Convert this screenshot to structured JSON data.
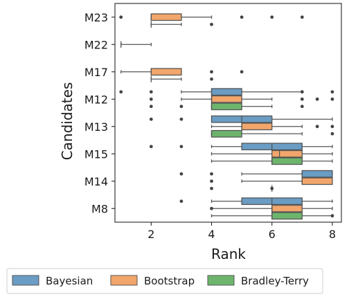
{
  "chart_data": {
    "type": "boxplot",
    "orientation": "horizontal",
    "xlabel": "Rank",
    "ylabel": "Candidates",
    "xlim": [
      0.8,
      8.3
    ],
    "xticks": [
      2,
      4,
      6,
      8
    ],
    "categories": [
      "M23",
      "M22",
      "M17",
      "M12",
      "M13",
      "M15",
      "M14",
      "M8"
    ],
    "legend": {
      "placement": "bottom-outside"
    },
    "series": [
      {
        "name": "Bayesian",
        "color": "#6a9cc4",
        "boxes": {
          "M23": null,
          "M22": null,
          "M17": null,
          "M12": {
            "whislo": 3,
            "q1": 4,
            "med": 4,
            "q3": 5,
            "whishi": 7,
            "fliers": [
              1,
              2,
              7,
              8
            ]
          },
          "M13": {
            "whislo": 4,
            "q1": 4,
            "med": 5,
            "q3": 6,
            "whishi": 8,
            "fliers": [
              2,
              3
            ]
          },
          "M15": {
            "whislo": 4,
            "q1": 5,
            "med": 6,
            "q3": 7,
            "whishi": 8,
            "fliers": [
              2,
              3
            ]
          },
          "M14": {
            "whislo": 5,
            "q1": 7,
            "med": 7,
            "q3": 8,
            "whishi": 8,
            "fliers": [
              3,
              4
            ]
          },
          "M8": {
            "whislo": 4,
            "q1": 5,
            "med": 6,
            "q3": 7,
            "whishi": 8,
            "fliers": [
              3
            ]
          }
        }
      },
      {
        "name": "Bootstrap",
        "color": "#f2a66b",
        "boxes": {
          "M23": {
            "whislo": 2,
            "q1": 2,
            "med": 2,
            "q3": 3,
            "whishi": 4,
            "fliers": [
              1,
              5,
              6,
              7
            ]
          },
          "M22": {
            "whislo": 1,
            "q1": 1,
            "med": 1,
            "q3": 1,
            "whishi": 2,
            "fliers": []
          },
          "M17": {
            "whislo": 1,
            "q1": 2,
            "med": 2,
            "q3": 3,
            "whishi": 3,
            "fliers": [
              4,
              5
            ]
          },
          "M12": {
            "whislo": 3,
            "q1": 4,
            "med": 4,
            "q3": 5,
            "whishi": 6,
            "fliers": [
              2,
              7,
              7.5,
              8
            ]
          },
          "M13": {
            "whislo": 4,
            "q1": 5,
            "med": 5,
            "q3": 6,
            "whishi": 7,
            "fliers": [
              7.5,
              8
            ]
          },
          "M15": {
            "whislo": 4,
            "q1": 6,
            "med": 6.25,
            "q3": 7,
            "whishi": 8,
            "fliers": []
          },
          "M14": {
            "whislo": 5,
            "q1": 7,
            "med": 7,
            "q3": 8,
            "whishi": 8,
            "fliers": [
              4
            ]
          },
          "M8": {
            "whislo": 4,
            "q1": 6,
            "med": 6,
            "q3": 7,
            "whishi": 8,
            "fliers": [
              4
            ]
          }
        }
      },
      {
        "name": "Bradley-Terry",
        "color": "#6db56d",
        "boxes": {
          "M23": {
            "whislo": 2,
            "q1": 2,
            "med": 2,
            "q3": 2,
            "whishi": 3,
            "fliers": [
              4
            ]
          },
          "M22": null,
          "M17": {
            "whislo": 2,
            "q1": 2,
            "med": 2,
            "q3": 2,
            "whishi": 3,
            "fliers": [
              4
            ]
          },
          "M12": {
            "whislo": 4,
            "q1": 4,
            "med": 4,
            "q3": 5,
            "whishi": 6,
            "fliers": [
              2,
              3,
              7
            ]
          },
          "M13": {
            "whislo": 4,
            "q1": 4,
            "med": 4,
            "q3": 5,
            "whishi": 7,
            "fliers": [
              8
            ]
          },
          "M15": {
            "whislo": 4,
            "q1": 6,
            "med": 6,
            "q3": 7,
            "whishi": 8,
            "fliers": []
          },
          "M14": {
            "whislo": 6,
            "q1": 6,
            "med": 6,
            "q3": 6,
            "whishi": 6,
            "fliers": [
              4,
              6
            ]
          },
          "M8": {
            "whislo": 4,
            "q1": 6,
            "med": 6,
            "q3": 7,
            "whishi": 8,
            "fliers": [
              8
            ]
          }
        }
      }
    ]
  }
}
